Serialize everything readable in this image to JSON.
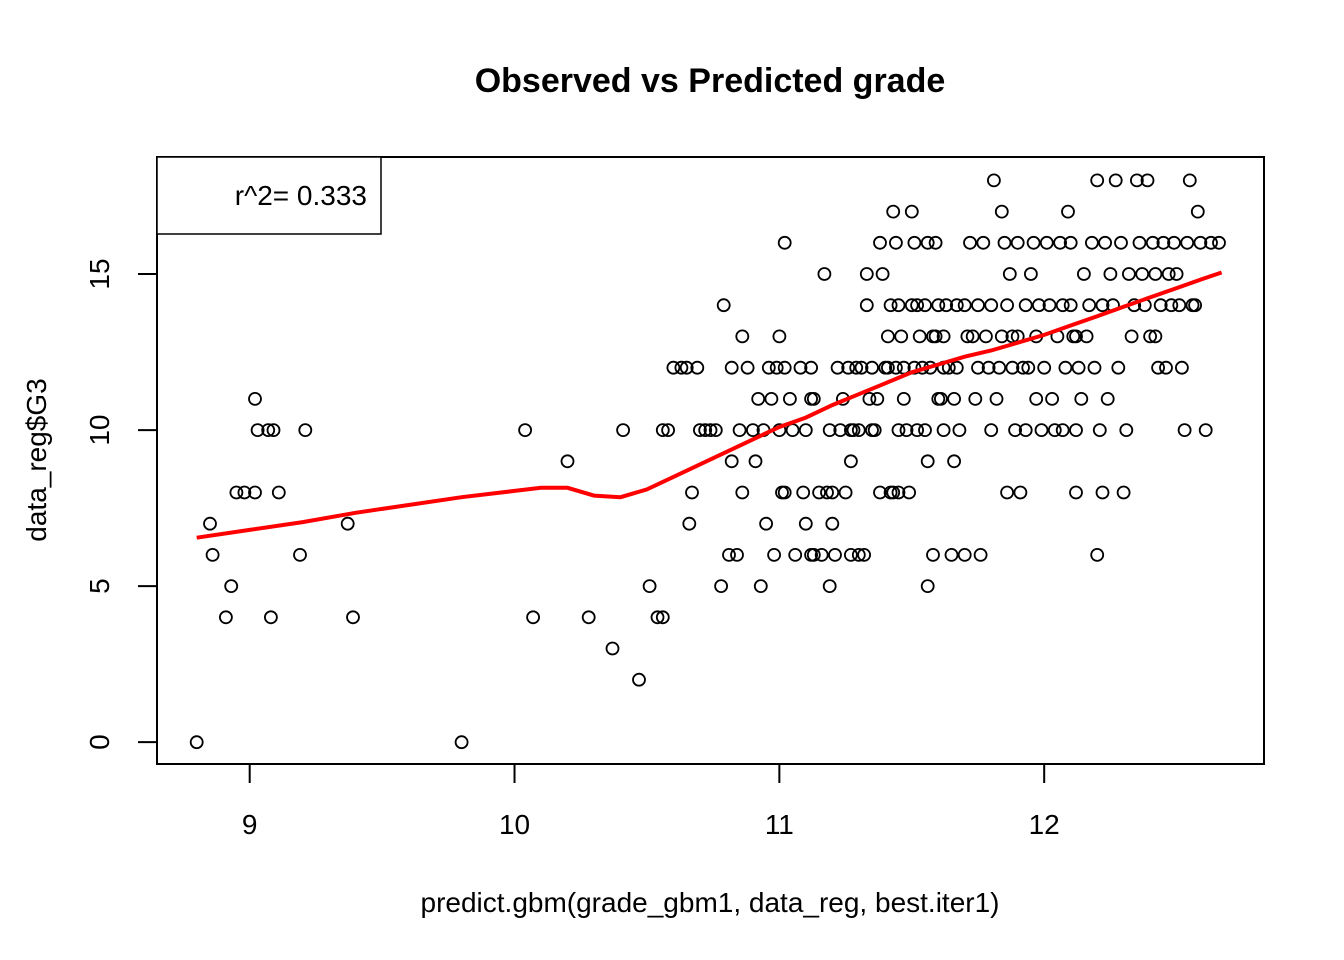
{
  "chart_data": {
    "type": "scatter",
    "title": "Observed vs Predicted grade",
    "xlabel": "predict.gbm(grade_gbm1, data_reg, best.iter1)",
    "ylabel": "data_reg$G3",
    "xlim": [
      8.65,
      12.83
    ],
    "ylim": [
      -0.7,
      18.75
    ],
    "x_ticks": [
      9,
      10,
      11,
      12
    ],
    "y_ticks": [
      0,
      5,
      10,
      15
    ],
    "x_tick_labels": [
      "9",
      "10",
      "11",
      "12"
    ],
    "y_tick_labels": [
      "0",
      "5",
      "10",
      "15"
    ],
    "legend": {
      "text": "r^2= 0.333",
      "placement": "top-left"
    },
    "grid": false,
    "colors": {
      "points": "#000000",
      "smooth_line": "#ff0000",
      "frame": "#000000"
    },
    "points": [
      [
        8.8,
        0
      ],
      [
        8.85,
        7
      ],
      [
        8.86,
        6
      ],
      [
        8.91,
        4
      ],
      [
        8.93,
        5
      ],
      [
        8.95,
        8
      ],
      [
        8.98,
        8
      ],
      [
        9.02,
        8
      ],
      [
        9.02,
        11
      ],
      [
        9.03,
        10
      ],
      [
        9.07,
        10
      ],
      [
        9.09,
        10
      ],
      [
        9.08,
        4
      ],
      [
        9.11,
        8
      ],
      [
        9.19,
        6
      ],
      [
        9.21,
        10
      ],
      [
        9.37,
        7
      ],
      [
        9.39,
        4
      ],
      [
        9.8,
        0
      ],
      [
        10.04,
        10
      ],
      [
        10.07,
        4
      ],
      [
        10.2,
        9
      ],
      [
        10.28,
        4
      ],
      [
        10.37,
        3
      ],
      [
        10.41,
        10
      ],
      [
        10.47,
        2
      ],
      [
        10.51,
        5
      ],
      [
        10.54,
        4
      ],
      [
        10.56,
        4
      ],
      [
        10.56,
        10
      ],
      [
        10.58,
        10
      ],
      [
        10.6,
        12
      ],
      [
        10.63,
        12
      ],
      [
        10.66,
        7
      ],
      [
        10.67,
        8
      ],
      [
        10.69,
        12
      ],
      [
        10.72,
        10
      ],
      [
        10.74,
        10
      ],
      [
        10.78,
        5
      ],
      [
        10.79,
        14
      ],
      [
        10.81,
        6
      ],
      [
        10.82,
        9
      ],
      [
        10.82,
        12
      ],
      [
        10.84,
        6
      ],
      [
        10.85,
        10
      ],
      [
        10.86,
        13
      ],
      [
        10.86,
        8
      ],
      [
        10.88,
        12
      ],
      [
        10.9,
        10
      ],
      [
        10.91,
        9
      ],
      [
        10.92,
        11
      ],
      [
        10.93,
        5
      ],
      [
        10.94,
        10
      ],
      [
        10.95,
        7
      ],
      [
        10.96,
        12
      ],
      [
        10.98,
        6
      ],
      [
        10.99,
        12
      ],
      [
        11.0,
        13
      ],
      [
        11.0,
        10
      ],
      [
        11.01,
        8
      ],
      [
        11.02,
        16
      ],
      [
        11.02,
        8
      ],
      [
        11.04,
        11
      ],
      [
        11.05,
        10
      ],
      [
        11.06,
        6
      ],
      [
        11.08,
        12
      ],
      [
        11.09,
        8
      ],
      [
        11.1,
        10
      ],
      [
        11.1,
        7
      ],
      [
        11.12,
        6
      ],
      [
        11.12,
        12
      ],
      [
        11.13,
        11
      ],
      [
        11.13,
        6
      ],
      [
        11.15,
        8
      ],
      [
        11.16,
        6
      ],
      [
        11.17,
        15
      ],
      [
        11.18,
        8
      ],
      [
        11.19,
        5
      ],
      [
        11.19,
        10
      ],
      [
        11.2,
        8
      ],
      [
        11.2,
        7
      ],
      [
        11.21,
        6
      ],
      [
        11.22,
        12
      ],
      [
        11.23,
        10
      ],
      [
        11.24,
        11
      ],
      [
        11.25,
        8
      ],
      [
        11.26,
        12
      ],
      [
        11.27,
        9
      ],
      [
        11.27,
        10
      ],
      [
        11.29,
        12
      ],
      [
        11.3,
        10
      ],
      [
        11.3,
        6
      ],
      [
        11.31,
        12
      ],
      [
        11.32,
        6
      ],
      [
        11.33,
        15
      ],
      [
        11.34,
        11
      ],
      [
        11.35,
        12
      ],
      [
        11.36,
        10
      ],
      [
        11.37,
        11
      ],
      [
        11.38,
        16
      ],
      [
        11.38,
        8
      ],
      [
        11.39,
        15
      ],
      [
        11.4,
        12
      ],
      [
        11.41,
        13
      ],
      [
        11.42,
        14
      ],
      [
        11.42,
        8
      ],
      [
        11.43,
        17
      ],
      [
        11.44,
        12
      ],
      [
        11.45,
        10
      ],
      [
        11.45,
        8
      ],
      [
        11.46,
        13
      ],
      [
        11.47,
        11
      ],
      [
        11.47,
        12
      ],
      [
        11.48,
        10
      ],
      [
        11.49,
        8
      ],
      [
        11.5,
        17
      ],
      [
        11.5,
        14
      ],
      [
        11.51,
        16
      ],
      [
        11.51,
        12
      ],
      [
        11.52,
        10
      ],
      [
        11.53,
        13
      ],
      [
        11.54,
        12
      ],
      [
        11.55,
        10
      ],
      [
        11.56,
        9
      ],
      [
        11.56,
        5
      ],
      [
        11.57,
        12
      ],
      [
        11.58,
        6
      ],
      [
        11.59,
        16
      ],
      [
        11.6,
        14
      ],
      [
        11.61,
        11
      ],
      [
        11.62,
        12
      ],
      [
        11.62,
        10
      ],
      [
        11.63,
        14
      ],
      [
        11.64,
        12
      ],
      [
        11.65,
        6
      ],
      [
        11.66,
        9
      ],
      [
        11.67,
        12
      ],
      [
        11.68,
        10
      ],
      [
        11.7,
        14
      ],
      [
        11.7,
        6
      ],
      [
        11.71,
        13
      ],
      [
        11.72,
        16
      ],
      [
        11.73,
        13
      ],
      [
        11.74,
        11
      ],
      [
        11.75,
        14
      ],
      [
        11.75,
        12
      ],
      [
        11.76,
        6
      ],
      [
        11.77,
        16
      ],
      [
        11.78,
        13
      ],
      [
        11.79,
        12
      ],
      [
        11.8,
        14
      ],
      [
        11.8,
        10
      ],
      [
        11.81,
        18
      ],
      [
        11.82,
        11
      ],
      [
        11.83,
        12
      ],
      [
        11.84,
        13
      ],
      [
        11.84,
        17
      ],
      [
        11.85,
        16
      ],
      [
        11.86,
        14
      ],
      [
        11.86,
        8
      ],
      [
        11.87,
        15
      ],
      [
        11.88,
        12
      ],
      [
        11.89,
        10
      ],
      [
        11.9,
        16
      ],
      [
        11.9,
        13
      ],
      [
        11.91,
        8
      ],
      [
        11.92,
        12
      ],
      [
        11.93,
        14
      ],
      [
        11.93,
        10
      ],
      [
        11.94,
        12
      ],
      [
        11.95,
        15
      ],
      [
        11.96,
        16
      ],
      [
        11.97,
        11
      ],
      [
        11.97,
        13
      ],
      [
        11.98,
        14
      ],
      [
        11.99,
        10
      ],
      [
        12.0,
        12
      ],
      [
        12.01,
        16
      ],
      [
        12.02,
        14
      ],
      [
        12.03,
        11
      ],
      [
        12.04,
        10
      ],
      [
        12.05,
        13
      ],
      [
        12.06,
        16
      ],
      [
        12.07,
        14
      ],
      [
        12.07,
        10
      ],
      [
        12.08,
        12
      ],
      [
        12.09,
        17
      ],
      [
        12.1,
        16
      ],
      [
        12.1,
        14
      ],
      [
        12.11,
        13
      ],
      [
        12.12,
        8
      ],
      [
        12.12,
        10
      ],
      [
        12.13,
        12
      ],
      [
        12.14,
        11
      ],
      [
        12.15,
        15
      ],
      [
        12.16,
        13
      ],
      [
        12.17,
        14
      ],
      [
        12.18,
        16
      ],
      [
        12.19,
        12
      ],
      [
        12.2,
        18
      ],
      [
        12.2,
        6
      ],
      [
        12.21,
        10
      ],
      [
        12.22,
        14
      ],
      [
        12.23,
        16
      ],
      [
        12.24,
        11
      ],
      [
        12.25,
        15
      ],
      [
        12.26,
        14
      ],
      [
        12.27,
        18
      ],
      [
        12.28,
        12
      ],
      [
        12.29,
        16
      ],
      [
        12.3,
        8
      ],
      [
        12.31,
        10
      ],
      [
        12.32,
        15
      ],
      [
        12.33,
        13
      ],
      [
        12.34,
        14
      ],
      [
        12.35,
        18
      ],
      [
        12.36,
        16
      ],
      [
        12.37,
        15
      ],
      [
        12.38,
        14
      ],
      [
        12.39,
        18
      ],
      [
        12.4,
        13
      ],
      [
        12.41,
        16
      ],
      [
        12.42,
        15
      ],
      [
        12.43,
        12
      ],
      [
        12.44,
        14
      ],
      [
        12.45,
        16
      ],
      [
        12.46,
        12
      ],
      [
        12.47,
        15
      ],
      [
        12.48,
        14
      ],
      [
        12.49,
        16
      ],
      [
        12.5,
        15
      ],
      [
        12.51,
        14
      ],
      [
        12.52,
        12
      ],
      [
        12.53,
        10
      ],
      [
        12.54,
        16
      ],
      [
        12.55,
        18
      ],
      [
        12.56,
        14
      ],
      [
        12.57,
        14
      ],
      [
        12.58,
        17
      ],
      [
        12.59,
        16
      ],
      [
        12.61,
        10
      ],
      [
        12.63,
        16
      ],
      [
        12.66,
        16
      ],
      [
        12.42,
        13
      ],
      [
        12.12,
        13
      ],
      [
        11.62,
        13
      ],
      [
        11.55,
        14
      ],
      [
        11.45,
        14
      ],
      [
        11.33,
        14
      ],
      [
        11.12,
        11
      ],
      [
        11.02,
        12
      ],
      [
        10.97,
        11
      ],
      [
        10.76,
        10
      ],
      [
        10.7,
        10
      ],
      [
        10.65,
        12
      ],
      [
        11.6,
        11
      ],
      [
        11.58,
        13
      ],
      [
        11.28,
        10
      ],
      [
        11.52,
        14
      ],
      [
        11.35,
        10
      ],
      [
        11.43,
        8
      ],
      [
        11.66,
        11
      ],
      [
        11.67,
        14
      ],
      [
        11.88,
        13
      ],
      [
        12.22,
        8
      ],
      [
        11.27,
        6
      ],
      [
        11.44,
        16
      ],
      [
        11.56,
        16
      ],
      [
        11.59,
        13
      ],
      [
        11.41,
        12
      ]
    ],
    "smooth_curve": [
      [
        8.8,
        6.55
      ],
      [
        9.0,
        6.8
      ],
      [
        9.2,
        7.05
      ],
      [
        9.4,
        7.35
      ],
      [
        9.6,
        7.6
      ],
      [
        9.8,
        7.85
      ],
      [
        10.0,
        8.05
      ],
      [
        10.1,
        8.15
      ],
      [
        10.2,
        8.15
      ],
      [
        10.3,
        7.9
      ],
      [
        10.4,
        7.85
      ],
      [
        10.5,
        8.1
      ],
      [
        10.6,
        8.5
      ],
      [
        10.7,
        8.9
      ],
      [
        10.8,
        9.3
      ],
      [
        10.9,
        9.7
      ],
      [
        11.0,
        10.1
      ],
      [
        11.1,
        10.4
      ],
      [
        11.2,
        10.8
      ],
      [
        11.3,
        11.15
      ],
      [
        11.4,
        11.5
      ],
      [
        11.5,
        11.85
      ],
      [
        11.6,
        12.1
      ],
      [
        11.7,
        12.35
      ],
      [
        11.8,
        12.55
      ],
      [
        11.9,
        12.8
      ],
      [
        12.0,
        13.05
      ],
      [
        12.1,
        13.35
      ],
      [
        12.2,
        13.65
      ],
      [
        12.3,
        13.95
      ],
      [
        12.4,
        14.25
      ],
      [
        12.5,
        14.55
      ],
      [
        12.6,
        14.85
      ],
      [
        12.67,
        15.05
      ]
    ]
  }
}
